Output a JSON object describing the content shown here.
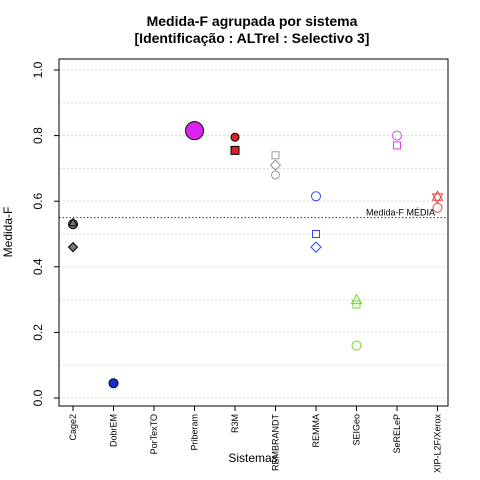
{
  "chart_data": {
    "type": "scatter",
    "title": "Medida-F agrupada por sistema",
    "subtitle": "[Identificação : ALTrel : Selectivo 3]",
    "xlabel": "Sistemas",
    "ylabel": "Medida-F",
    "ylim": [
      0,
      1
    ],
    "yticks": [
      "0.0",
      "0.2",
      "0.4",
      "0.6",
      "0.8",
      "1.0"
    ],
    "grid": true,
    "categories": [
      "Cage2",
      "DobrEM",
      "PorTexTO",
      "Priberam",
      "R3M",
      "REMBRANDT",
      "REMMA",
      "SEIGeo",
      "SeRELeP",
      "XIP-L2F/Xerox"
    ],
    "reference_line": {
      "value": 0.55,
      "label": "Medida-F MÉDIA"
    },
    "points": [
      {
        "category": "Cage2",
        "value": 0.53,
        "shape": "circle",
        "size": 4.5,
        "fill": "#777777",
        "stroke": "#000000"
      },
      {
        "category": "Cage2",
        "value": 0.535,
        "shape": "triangle",
        "size": 4,
        "fill": "#777777",
        "stroke": "#000000"
      },
      {
        "category": "Cage2",
        "value": 0.46,
        "shape": "diamond",
        "size": 4.5,
        "fill": "#777777",
        "stroke": "#000000"
      },
      {
        "category": "DobrEM",
        "value": 0.045,
        "shape": "circle",
        "size": 4.5,
        "fill": "#1030d0",
        "stroke": "#000000"
      },
      {
        "category": "Priberam",
        "value": 0.815,
        "shape": "circle",
        "size": 9,
        "fill": "#dd22ee",
        "stroke": "#000000"
      },
      {
        "category": "R3M",
        "value": 0.795,
        "shape": "circle",
        "size": 4,
        "fill": "#dd2222",
        "stroke": "#000000"
      },
      {
        "category": "R3M",
        "value": 0.755,
        "shape": "square",
        "size": 4,
        "fill": "#dd2222",
        "stroke": "#000000"
      },
      {
        "category": "REMBRANDT",
        "value": 0.74,
        "shape": "square",
        "size": 3.5,
        "fill": "none",
        "stroke": "#999999"
      },
      {
        "category": "REMBRANDT",
        "value": 0.71,
        "shape": "diamond",
        "size": 5,
        "fill": "none",
        "stroke": "#999999"
      },
      {
        "category": "REMBRANDT",
        "value": 0.68,
        "shape": "circle",
        "size": 4,
        "fill": "none",
        "stroke": "#999999"
      },
      {
        "category": "REMMA",
        "value": 0.615,
        "shape": "circle",
        "size": 4.5,
        "fill": "none",
        "stroke": "#3344ff"
      },
      {
        "category": "REMMA",
        "value": 0.5,
        "shape": "square",
        "size": 3.5,
        "fill": "none",
        "stroke": "#3344ff"
      },
      {
        "category": "REMMA",
        "value": 0.46,
        "shape": "diamond",
        "size": 5,
        "fill": "none",
        "stroke": "#3344ff"
      },
      {
        "category": "SEIGeo",
        "value": 0.3,
        "shape": "triangle",
        "size": 5,
        "fill": "none",
        "stroke": "#66dd22"
      },
      {
        "category": "SEIGeo",
        "value": 0.285,
        "shape": "square",
        "size": 3.5,
        "fill": "none",
        "stroke": "#66dd22"
      },
      {
        "category": "SEIGeo",
        "value": 0.16,
        "shape": "circle",
        "size": 4.5,
        "fill": "none",
        "stroke": "#66dd22"
      },
      {
        "category": "SeRELeP",
        "value": 0.8,
        "shape": "circle",
        "size": 4.5,
        "fill": "none",
        "stroke": "#dd44ee"
      },
      {
        "category": "SeRELeP",
        "value": 0.77,
        "shape": "square",
        "size": 3.5,
        "fill": "none",
        "stroke": "#dd44ee"
      },
      {
        "category": "XIP-L2F/Xerox",
        "value": 0.615,
        "shape": "triangle",
        "size": 5,
        "fill": "none",
        "stroke": "#ee4444"
      },
      {
        "category": "XIP-L2F/Xerox",
        "value": 0.61,
        "shape": "triangle-down",
        "size": 5,
        "fill": "none",
        "stroke": "#ee4444"
      },
      {
        "category": "XIP-L2F/Xerox",
        "value": 0.58,
        "shape": "circle",
        "size": 4.5,
        "fill": "none",
        "stroke": "#ee4444"
      }
    ]
  }
}
